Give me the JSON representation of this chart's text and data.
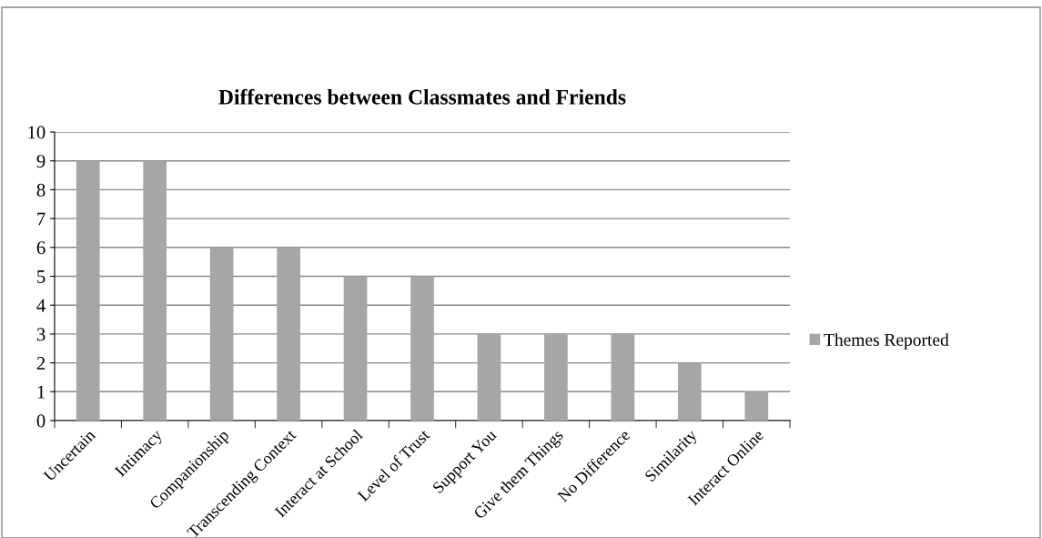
{
  "chart_data": {
    "type": "bar",
    "title": "Differences between Classmates and Friends",
    "categories": [
      "Uncertain",
      "Intimacy",
      "Companionship",
      "Transcending Context",
      "Interact at School",
      "Level of Trust",
      "Support You",
      "Give them Things",
      "No Difference",
      "Similarity",
      "Interact Online"
    ],
    "series": [
      {
        "name": "Themes Reported",
        "color": "#a6a6a6",
        "values": [
          9,
          9,
          6,
          6,
          5,
          5,
          3,
          3,
          3,
          2,
          1
        ]
      }
    ],
    "ylim": [
      0,
      10
    ],
    "yticks": [
      0,
      1,
      2,
      3,
      4,
      5,
      6,
      7,
      8,
      9,
      10
    ],
    "grid": "y",
    "legend": "right"
  }
}
